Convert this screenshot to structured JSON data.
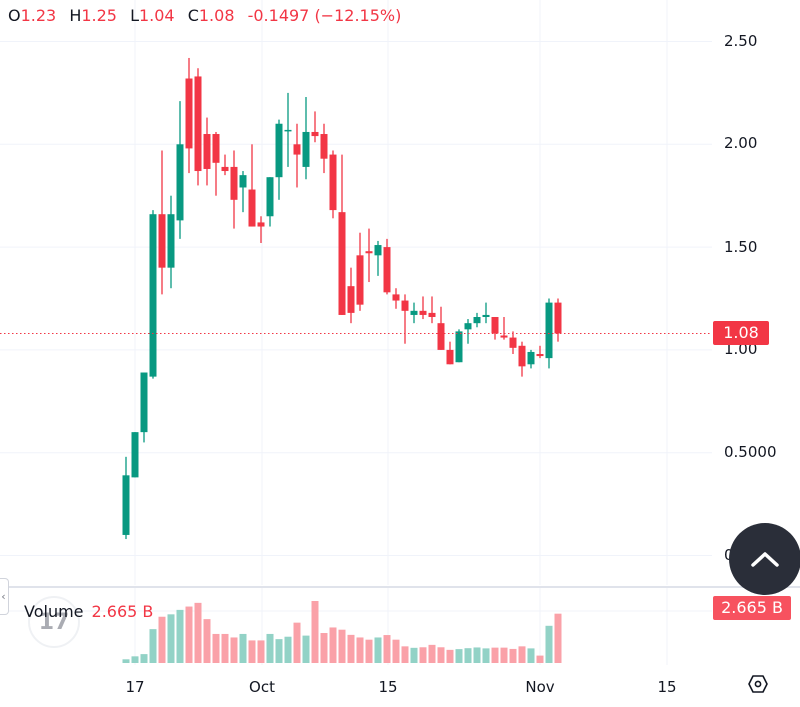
{
  "legend": {
    "open_key": "O",
    "open": "1.23",
    "high_key": "H",
    "high": "1.25",
    "low_key": "L",
    "low": "1.04",
    "close_key": "C",
    "close": "1.08",
    "change": "-0.1497 (−12.15%)"
  },
  "price_axis": {
    "labels": [
      "2.50",
      "2.00",
      "1.50",
      "1.00",
      "0.5000",
      "0"
    ],
    "last_price": "1.08"
  },
  "time_axis": {
    "labels": [
      "17",
      "Oct",
      "15",
      "Nov",
      "15"
    ]
  },
  "volume": {
    "label": "Volume",
    "value": "2.665 B",
    "badge": "2.665 B"
  },
  "colors": {
    "up": "#089981",
    "down": "#f23645",
    "volume_up": "#92d2c6",
    "volume_down": "#faa1a8",
    "grid": "#f0f3fa",
    "last_price_line": "#f23645",
    "button_bg": "#2a2e39"
  },
  "icons": {
    "scroll_to_realtime": "chevron-up-icon",
    "settings": "hexagon-gear-icon",
    "collapse": "chevron-left-icon",
    "logo": "tradingview-logo-icon"
  },
  "chart_data": {
    "type": "candlestick",
    "title": "",
    "xlabel": "",
    "ylabel": "",
    "ylim": [
      0,
      2.6
    ],
    "grid": true,
    "x_tick_labels": [
      "17",
      "Oct",
      "15",
      "Nov",
      "15"
    ],
    "y_tick_labels": [
      "2.50",
      "2.00",
      "1.50",
      "1.00",
      "0.5000",
      "0"
    ],
    "last_price": 1.08,
    "candles": [
      {
        "o": 0.1,
        "h": 0.48,
        "l": 0.08,
        "c": 0.39,
        "v": 0.2
      },
      {
        "o": 0.38,
        "h": 0.6,
        "l": 0.38,
        "c": 0.6,
        "v": 0.36
      },
      {
        "o": 0.6,
        "h": 0.75,
        "l": 0.55,
        "c": 0.89,
        "v": 0.48
      },
      {
        "o": 0.87,
        "h": 1.68,
        "l": 0.86,
        "c": 1.66,
        "v": 1.83
      },
      {
        "o": 1.66,
        "h": 1.97,
        "l": 1.27,
        "c": 1.4,
        "v": 2.5
      },
      {
        "o": 1.4,
        "h": 1.75,
        "l": 1.3,
        "c": 1.66,
        "v": 2.63
      },
      {
        "o": 1.63,
        "h": 2.21,
        "l": 1.54,
        "c": 2.0,
        "v": 2.87
      },
      {
        "o": 2.32,
        "h": 2.42,
        "l": 1.86,
        "c": 1.98,
        "v": 3.05
      },
      {
        "o": 2.33,
        "h": 2.37,
        "l": 1.8,
        "c": 1.87,
        "v": 3.25
      },
      {
        "o": 2.05,
        "h": 2.13,
        "l": 1.8,
        "c": 1.88,
        "v": 2.37
      },
      {
        "o": 2.05,
        "h": 2.06,
        "l": 1.75,
        "c": 1.91,
        "v": 1.57
      },
      {
        "o": 1.89,
        "h": 1.95,
        "l": 1.85,
        "c": 1.87,
        "v": 1.57
      },
      {
        "o": 1.89,
        "h": 1.97,
        "l": 1.59,
        "c": 1.73,
        "v": 1.38
      },
      {
        "o": 1.79,
        "h": 1.87,
        "l": 1.67,
        "c": 1.85,
        "v": 1.57
      },
      {
        "o": 1.78,
        "h": 2.0,
        "l": 1.6,
        "c": 1.6,
        "v": 1.22
      },
      {
        "o": 1.62,
        "h": 1.65,
        "l": 1.52,
        "c": 1.6,
        "v": 1.22
      },
      {
        "o": 1.65,
        "h": 1.84,
        "l": 1.6,
        "c": 1.84,
        "v": 1.57
      },
      {
        "o": 1.84,
        "h": 2.12,
        "l": 1.73,
        "c": 2.1,
        "v": 1.29
      },
      {
        "o": 2.07,
        "h": 2.25,
        "l": 1.89,
        "c": 2.07,
        "v": 1.42
      },
      {
        "o": 2.0,
        "h": 2.1,
        "l": 1.79,
        "c": 1.95,
        "v": 2.18
      },
      {
        "o": 1.89,
        "h": 2.23,
        "l": 1.83,
        "c": 2.06,
        "v": 1.48
      },
      {
        "o": 2.06,
        "h": 2.16,
        "l": 2.01,
        "c": 2.04,
        "v": 3.35
      },
      {
        "o": 2.05,
        "h": 2.1,
        "l": 1.86,
        "c": 1.93,
        "v": 1.62
      },
      {
        "o": 1.95,
        "h": 1.97,
        "l": 1.64,
        "c": 1.68,
        "v": 1.92
      },
      {
        "o": 1.67,
        "h": 1.95,
        "l": 1.46,
        "c": 1.17,
        "v": 1.8
      },
      {
        "o": 1.31,
        "h": 1.4,
        "l": 1.13,
        "c": 1.18,
        "v": 1.52
      },
      {
        "o": 1.46,
        "h": 1.57,
        "l": 1.19,
        "c": 1.22,
        "v": 1.38
      },
      {
        "o": 1.48,
        "h": 1.59,
        "l": 1.33,
        "c": 1.47,
        "v": 1.26
      },
      {
        "o": 1.46,
        "h": 1.53,
        "l": 1.36,
        "c": 1.51,
        "v": 1.38
      },
      {
        "o": 1.5,
        "h": 1.54,
        "l": 1.27,
        "c": 1.28,
        "v": 1.51
      },
      {
        "o": 1.27,
        "h": 1.3,
        "l": 1.2,
        "c": 1.24,
        "v": 1.26
      },
      {
        "o": 1.24,
        "h": 1.27,
        "l": 1.03,
        "c": 1.19,
        "v": 0.9
      },
      {
        "o": 1.17,
        "h": 1.23,
        "l": 1.13,
        "c": 1.19,
        "v": 0.82
      },
      {
        "o": 1.19,
        "h": 1.26,
        "l": 1.15,
        "c": 1.17,
        "v": 0.85
      },
      {
        "o": 1.18,
        "h": 1.26,
        "l": 1.13,
        "c": 1.16,
        "v": 0.98
      },
      {
        "o": 1.13,
        "h": 1.21,
        "l": 1.01,
        "c": 1.0,
        "v": 0.85
      },
      {
        "o": 1.0,
        "h": 1.04,
        "l": 0.93,
        "c": 0.93,
        "v": 0.71
      },
      {
        "o": 0.94,
        "h": 1.1,
        "l": 0.94,
        "c": 1.09,
        "v": 0.75
      },
      {
        "o": 1.1,
        "h": 1.15,
        "l": 1.03,
        "c": 1.13,
        "v": 0.8
      },
      {
        "o": 1.13,
        "h": 1.18,
        "l": 1.11,
        "c": 1.16,
        "v": 0.84
      },
      {
        "o": 1.16,
        "h": 1.23,
        "l": 1.13,
        "c": 1.17,
        "v": 0.79
      },
      {
        "o": 1.16,
        "h": 1.14,
        "l": 1.05,
        "c": 1.08,
        "v": 0.83
      },
      {
        "o": 1.07,
        "h": 1.16,
        "l": 1.05,
        "c": 1.06,
        "v": 0.83
      },
      {
        "o": 1.06,
        "h": 1.09,
        "l": 0.98,
        "c": 1.01,
        "v": 0.76
      },
      {
        "o": 1.02,
        "h": 1.04,
        "l": 0.87,
        "c": 0.92,
        "v": 0.9
      },
      {
        "o": 0.93,
        "h": 1.0,
        "l": 0.91,
        "c": 0.99,
        "v": 0.79
      },
      {
        "o": 0.98,
        "h": 1.02,
        "l": 0.96,
        "c": 0.97,
        "v": 0.4
      },
      {
        "o": 0.96,
        "h": 1.25,
        "l": 0.91,
        "c": 1.23,
        "v": 2.01
      },
      {
        "o": 1.23,
        "h": 1.25,
        "l": 1.04,
        "c": 1.08,
        "v": 2.665
      }
    ]
  }
}
